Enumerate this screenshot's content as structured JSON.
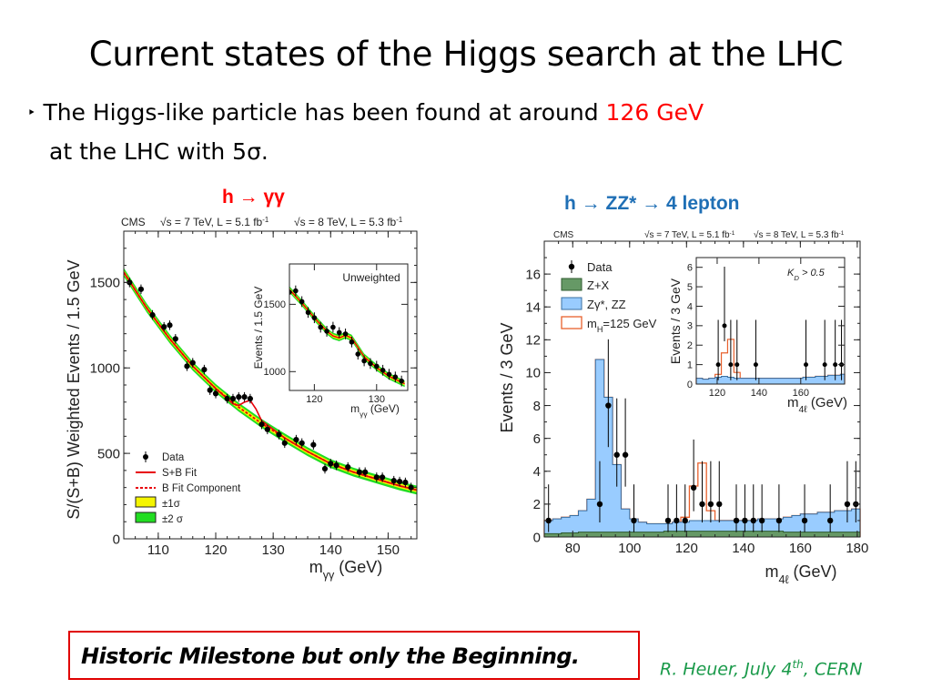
{
  "title": "Current states of the Higgs search at the LHC",
  "bullet": {
    "prefix": "The Higgs-like particle has been found at around ",
    "highlight": "126 GeV",
    "line2": "at the LHC with 5σ."
  },
  "colors": {
    "highlight": "#ff0000",
    "hgg_title": "#ff0000",
    "hzz_title": "#1f6fb5",
    "credit": "#1a9a4a",
    "box_border": "#e00000"
  },
  "milestone": "Historic Milestone but only the Beginning.",
  "credit": {
    "text": "R. Heuer, July 4",
    "sup": "th",
    "tail": ", CERN"
  },
  "chart_data": [
    {
      "type": "scatter",
      "title": "h → γγ",
      "header": {
        "cms": "CMS",
        "e7": "√s = 7 TeV, L = 5.1 fb",
        "e8": "√s = 8 TeV, L = 5.3 fb",
        "exp": "-1"
      },
      "ylabel": "S/(S+B) Weighted Events / 1.5 GeV",
      "xlabel": "m",
      "xlabel_sub": "γγ",
      "xunit": " (GeV)",
      "xlim": [
        104,
        155
      ],
      "ylim": [
        0,
        1800
      ],
      "xticks": [
        110,
        120,
        130,
        140,
        150
      ],
      "yticks": [
        0,
        500,
        1000,
        1500
      ],
      "grid": false,
      "data": {
        "x": [
          105,
          107,
          109,
          111,
          112,
          113,
          115,
          116,
          118,
          119,
          120,
          122,
          123,
          124,
          125,
          126,
          128,
          129,
          131,
          132,
          134,
          135,
          137,
          139,
          140,
          141,
          143,
          145,
          146,
          148,
          149,
          151,
          152,
          153,
          154
        ],
        "y": [
          1500,
          1460,
          1310,
          1240,
          1250,
          1170,
          1010,
          1030,
          990,
          870,
          850,
          820,
          820,
          830,
          830,
          820,
          670,
          640,
          610,
          560,
          580,
          560,
          550,
          410,
          440,
          430,
          420,
          390,
          390,
          360,
          360,
          340,
          335,
          330,
          300
        ]
      },
      "sb_fit": {
        "x": [
          104,
          108,
          112,
          116,
          120,
          123,
          124,
          125,
          126,
          127,
          128,
          132,
          136,
          140,
          144,
          148,
          152,
          155
        ],
        "y": [
          1560,
          1350,
          1170,
          1010,
          880,
          790,
          780,
          800,
          810,
          760,
          690,
          590,
          510,
          440,
          390,
          350,
          310,
          285
        ]
      },
      "b_fit": {
        "x": [
          104,
          108,
          112,
          116,
          120,
          124,
          128,
          132,
          136,
          140,
          144,
          148,
          152,
          155
        ],
        "y": [
          1560,
          1350,
          1170,
          1010,
          880,
          770,
          675,
          590,
          510,
          440,
          390,
          350,
          310,
          285
        ]
      },
      "legend": {
        "position": "bottom-left",
        "entries": [
          "Data",
          "S+B Fit",
          "B Fit Component",
          "±1σ",
          "±2 σ"
        ]
      },
      "inset": {
        "title": "Unweighted",
        "ylabel": "Events / 1.5 GeV",
        "xlabel": "m",
        "xlabel_sub": "γγ",
        "xunit": " (GeV)",
        "xlim": [
          116,
          135
        ],
        "ylim": [
          860,
          1800
        ],
        "xticks": [
          120,
          130
        ],
        "yticks": [
          1000,
          1500
        ],
        "data": {
          "x": [
            116,
            117,
            118,
            119,
            120,
            121,
            122,
            123,
            124,
            125,
            126,
            127,
            128,
            129,
            130,
            131,
            132,
            133,
            134
          ],
          "y": [
            1590,
            1600,
            1520,
            1440,
            1400,
            1330,
            1300,
            1330,
            1290,
            1280,
            1220,
            1130,
            1080,
            1060,
            1040,
            1010,
            980,
            960,
            930
          ]
        },
        "fit": {
          "x": [
            116,
            118,
            120,
            122,
            123,
            124,
            125,
            126,
            127,
            128,
            130,
            132,
            134.5
          ],
          "y": [
            1610,
            1510,
            1400,
            1300,
            1265,
            1250,
            1270,
            1250,
            1180,
            1110,
            1030,
            965,
            910
          ]
        }
      }
    },
    {
      "type": "bar",
      "title": "h → ZZ* → 4 lepton",
      "header": {
        "cms": "CMS",
        "e7": "√s = 7 TeV, L = 5.1 fb",
        "e8": "√s = 8 TeV, L = 5.3 fb",
        "exp": "-1"
      },
      "ylabel": "Events / 3 GeV",
      "xlabel": "m",
      "xlabel_sub": "4ℓ",
      "xunit": " (GeV)",
      "xlim": [
        70,
        181
      ],
      "ylim": [
        0,
        18
      ],
      "xticks": [
        80,
        100,
        120,
        140,
        160,
        180
      ],
      "yticks": [
        0,
        2,
        4,
        6,
        8,
        10,
        12,
        14,
        16
      ],
      "bin_edges": [
        70,
        73,
        76,
        79,
        82,
        85,
        88,
        91,
        94,
        97,
        100,
        103,
        106,
        109,
        112,
        115,
        118,
        121,
        124,
        127,
        130,
        133,
        136,
        139,
        142,
        145,
        148,
        151,
        154,
        157,
        160,
        163,
        166,
        169,
        172,
        175,
        178,
        181
      ],
      "zx": [
        0.2,
        0.2,
        0.25,
        0.25,
        0.3,
        0.3,
        0.3,
        0.3,
        0.3,
        0.3,
        0.3,
        0.3,
        0.3,
        0.3,
        0.35,
        0.35,
        0.35,
        0.35,
        0.35,
        0.35,
        0.35,
        0.35,
        0.35,
        0.35,
        0.35,
        0.35,
        0.35,
        0.35,
        0.3,
        0.3,
        0.3,
        0.3,
        0.3,
        0.3,
        0.3,
        0.3,
        0.3
      ],
      "zz": [
        1.0,
        1.1,
        1.2,
        1.3,
        1.6,
        2.3,
        10.8,
        8.5,
        4.4,
        1.7,
        1.1,
        0.9,
        0.8,
        0.8,
        0.8,
        0.9,
        0.9,
        1.0,
        1.0,
        1.0,
        1.0,
        1.0,
        1.0,
        1.0,
        1.0,
        1.1,
        1.1,
        1.1,
        1.2,
        1.3,
        1.4,
        1.4,
        1.5,
        1.5,
        1.6,
        1.6,
        1.7
      ],
      "mh125": [
        1.0,
        1.1,
        1.2,
        1.3,
        1.6,
        2.3,
        10.8,
        8.5,
        4.4,
        1.7,
        1.1,
        0.9,
        0.8,
        0.8,
        0.8,
        0.9,
        1.2,
        3.1,
        4.5,
        1.6,
        1.0,
        1.0,
        1.0,
        1.0,
        1.0,
        1.1,
        1.1,
        1.1,
        1.2,
        1.3,
        1.4,
        1.4,
        1.5,
        1.5,
        1.6,
        1.6,
        1.7
      ],
      "data": {
        "x": [
          71.5,
          89.5,
          92.5,
          95.5,
          98.5,
          101.5,
          113.5,
          116.5,
          119.5,
          122.5,
          125.5,
          128.5,
          131.5,
          137.5,
          140.5,
          143.5,
          146.5,
          152.5,
          161.5,
          170.5,
          176.5,
          179.5
        ],
        "y": [
          1,
          2,
          8,
          5,
          5,
          1,
          1,
          1,
          1,
          3,
          2,
          2,
          2,
          1,
          1,
          1,
          1,
          1,
          1,
          1,
          2,
          2
        ]
      },
      "legend": {
        "position": "top-left",
        "entries": [
          "Data",
          "Z+X",
          "Zγ*, ZZ",
          "m",
          "=125 GeV"
        ],
        "mh_sub": "H"
      },
      "inset": {
        "annotation": "K",
        "annotation_sub": "D",
        "annotation_tail": " > 0.5",
        "ylabel": "Events / 3 GeV",
        "xlabel": "m",
        "xlabel_sub": "4ℓ",
        "xunit": " (GeV)",
        "xlim": [
          110,
          181
        ],
        "ylim": [
          0,
          6.5
        ],
        "xticks": [
          120,
          140,
          160
        ],
        "yticks": [
          0,
          1,
          2,
          3,
          4,
          5,
          6
        ],
        "bin_edges": [
          110,
          113,
          116,
          119,
          122,
          125,
          128,
          131,
          134,
          137,
          140,
          143,
          146,
          149,
          152,
          155,
          158,
          161,
          164,
          167,
          170,
          173,
          176,
          179,
          181
        ],
        "bkg": [
          0.3,
          0.25,
          0.3,
          0.35,
          0.4,
          0.35,
          0.3,
          0.3,
          0.3,
          0.3,
          0.3,
          0.3,
          0.3,
          0.3,
          0.3,
          0.3,
          0.3,
          0.35,
          0.35,
          0.4,
          0.4,
          0.45,
          0.45,
          0.5
        ],
        "sig": [
          0.3,
          0.25,
          0.3,
          0.5,
          1.6,
          2.3,
          0.6,
          0.3,
          0.3,
          0.3,
          0.3,
          0.3,
          0.3,
          0.3,
          0.3,
          0.3,
          0.3,
          0.35,
          0.35,
          0.4,
          0.4,
          0.45,
          0.45,
          0.5
        ],
        "data": {
          "x": [
            120.5,
            123.5,
            126.5,
            129.5,
            138.5,
            162.5,
            171.5,
            176.5,
            179.5
          ],
          "y": [
            1,
            3,
            1,
            1,
            1,
            1,
            1,
            1,
            1
          ]
        }
      }
    }
  ]
}
